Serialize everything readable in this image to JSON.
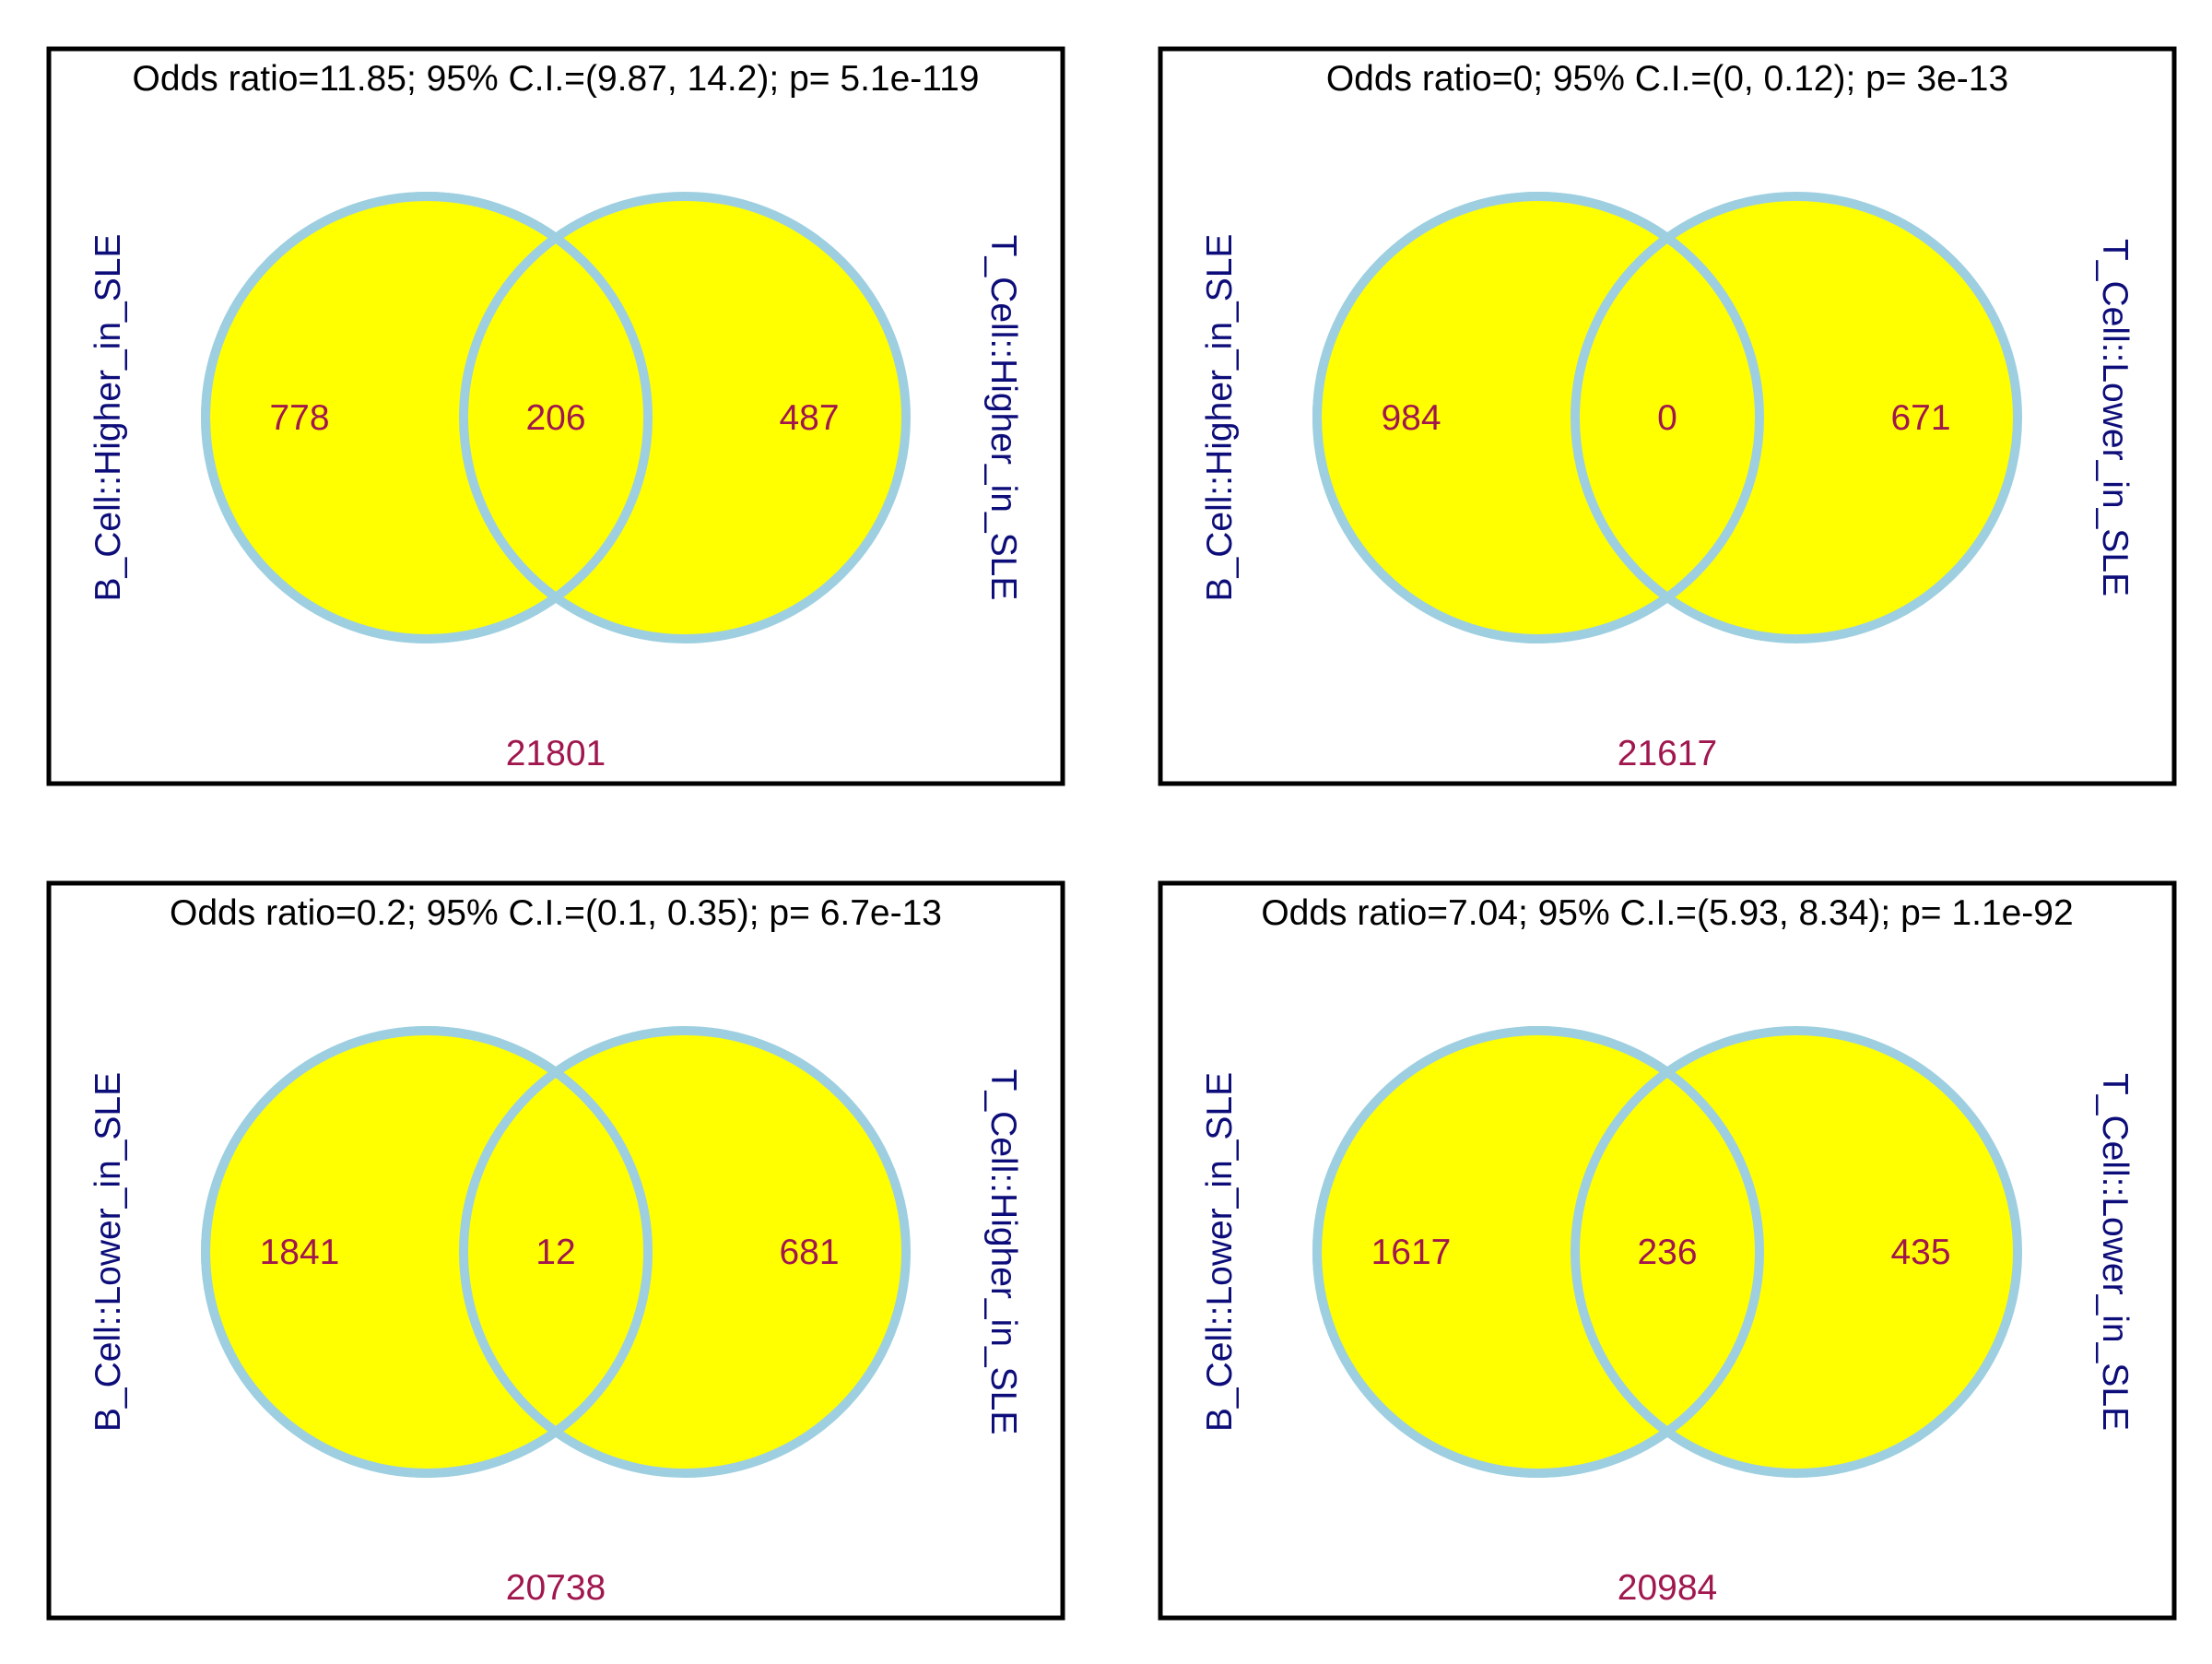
{
  "colors": {
    "circle_fill": "#ffff00",
    "circle_stroke": "#9ecfe0",
    "count_text": "#a0174e",
    "set_label_text": "#0d0d7a",
    "title_text": "#000000",
    "frame": "#000000"
  },
  "panels": [
    {
      "title": "Odds ratio=11.85; 95% C.I.=(9.87, 14.2); p= 5.1e-119",
      "left_label": "B_Cell::Higher_in_SLE",
      "right_label": "T_Cell::Higher_in_SLE",
      "left_only": "778",
      "overlap": "206",
      "right_only": "487",
      "outside": "21801"
    },
    {
      "title": "Odds ratio=0; 95% C.I.=(0, 0.12); p= 3e-13",
      "left_label": "B_Cell::Higher_in_SLE",
      "right_label": "T_Cell::Lower_in_SLE",
      "left_only": "984",
      "overlap": "0",
      "right_only": "671",
      "outside": "21617"
    },
    {
      "title": "Odds ratio=0.2; 95% C.I.=(0.1, 0.35); p= 6.7e-13",
      "left_label": "B_Cell::Lower_in_SLE",
      "right_label": "T_Cell::Higher_in_SLE",
      "left_only": "1841",
      "overlap": "12",
      "right_only": "681",
      "outside": "20738"
    },
    {
      "title": "Odds ratio=7.04; 95% C.I.=(5.93, 8.34); p= 1.1e-92",
      "left_label": "B_Cell::Lower_in_SLE",
      "right_label": "T_Cell::Lower_in_SLE",
      "left_only": "1617",
      "overlap": "236",
      "right_only": "435",
      "outside": "20984"
    }
  ]
}
